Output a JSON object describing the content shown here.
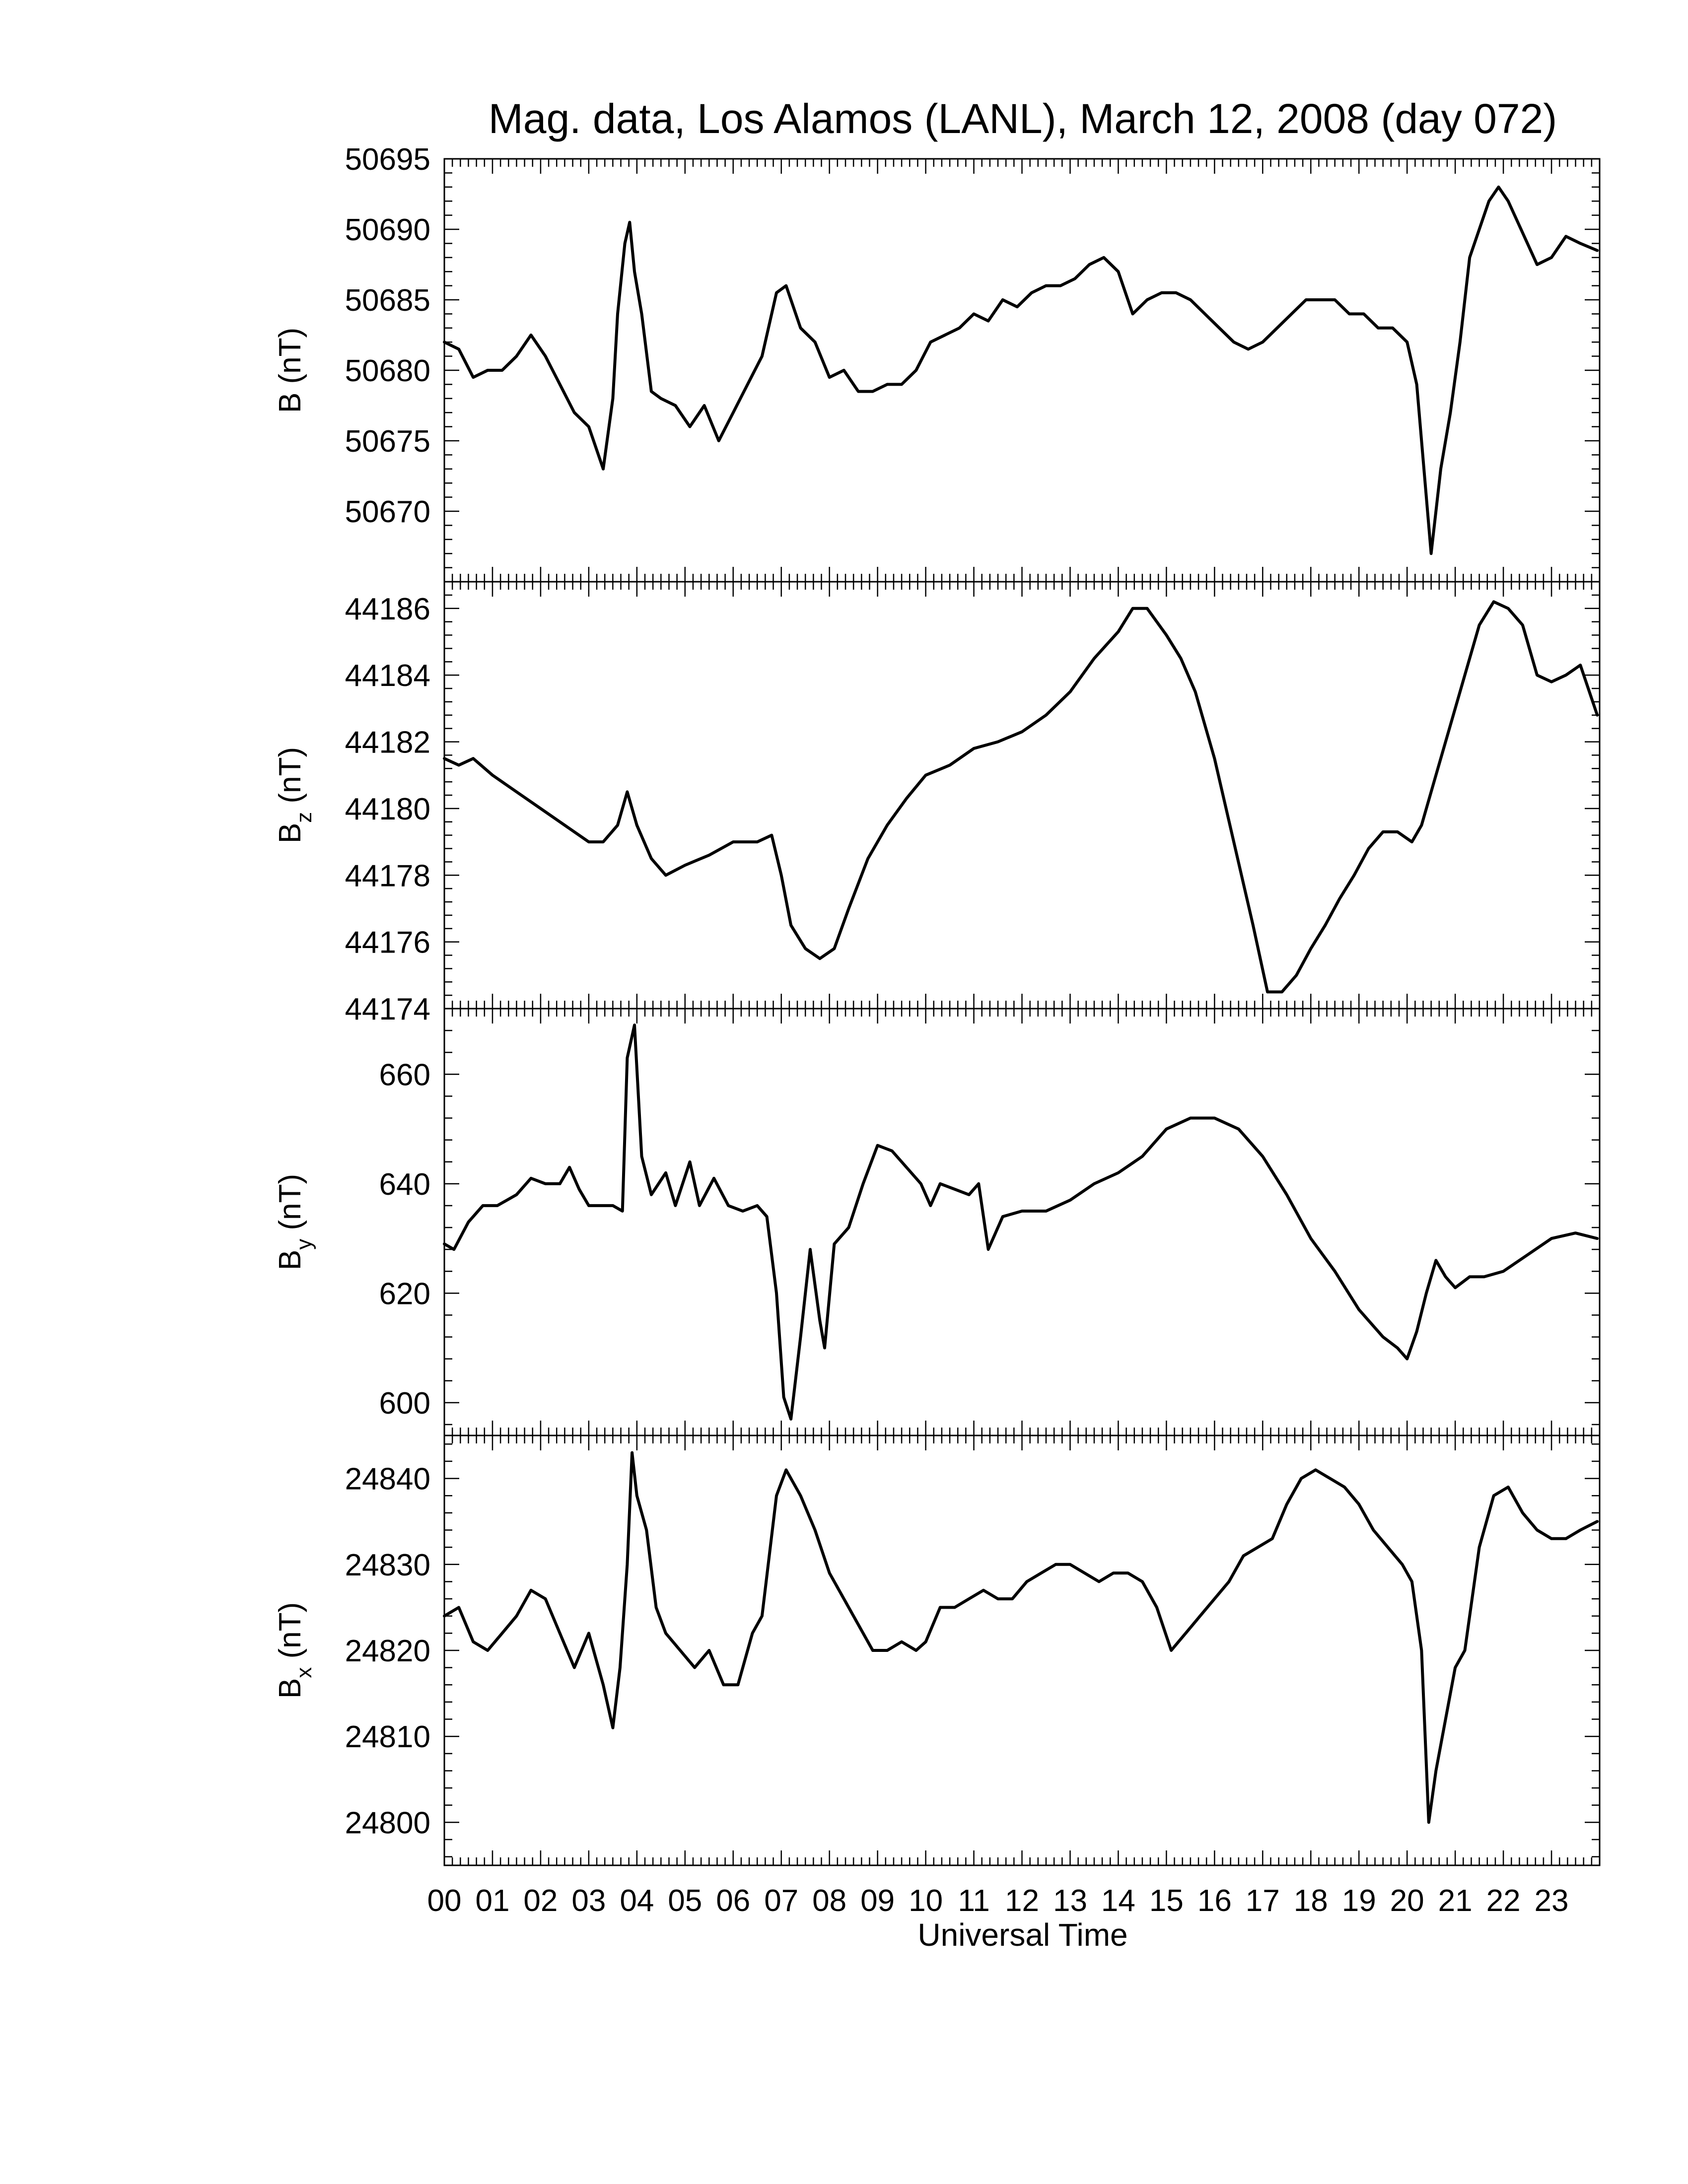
{
  "title": "Mag. data, Los Alamos (LANL), March 12, 2008 (day 072)",
  "xlabel": "Universal Time",
  "line_color": "#000000",
  "chart_data": [
    {
      "type": "line",
      "ylabel_main": "B",
      "ylabel_sub": "",
      "ylabel_unit": "(nT)",
      "xlim": [
        0,
        24
      ],
      "ylim": [
        50665,
        50695
      ],
      "yticks": [
        50670,
        50675,
        50680,
        50685,
        50690,
        50695
      ],
      "series": [
        {
          "x": [
            0,
            0.3,
            0.6,
            0.9,
            1.2,
            1.5,
            1.8,
            2.1,
            2.4,
            2.7,
            3.0,
            3.3,
            3.5,
            3.6,
            3.75,
            3.85,
            3.95,
            4.1,
            4.3,
            4.5,
            4.8,
            5.1,
            5.4,
            5.7,
            6.0,
            6.3,
            6.6,
            6.9,
            7.1,
            7.4,
            7.7,
            8.0,
            8.3,
            8.6,
            8.9,
            9.2,
            9.5,
            9.8,
            10.1,
            10.4,
            10.7,
            11.0,
            11.3,
            11.6,
            11.9,
            12.2,
            12.5,
            12.8,
            13.1,
            13.4,
            13.7,
            14.0,
            14.3,
            14.6,
            14.9,
            15.2,
            15.5,
            15.8,
            16.1,
            16.4,
            16.7,
            17.0,
            17.3,
            17.6,
            17.9,
            18.2,
            18.5,
            18.8,
            19.1,
            19.4,
            19.7,
            20.0,
            20.2,
            20.35,
            20.5,
            20.7,
            20.9,
            21.1,
            21.3,
            21.5,
            21.7,
            21.9,
            22.1,
            22.3,
            22.5,
            22.7,
            23.0,
            23.3,
            23.6,
            23.95
          ],
          "y": [
            50682,
            50681.5,
            50679.5,
            50680,
            50680,
            50681,
            50682.5,
            50681,
            50679,
            50677,
            50676,
            50673,
            50678,
            50684,
            50689,
            50690.5,
            50687,
            50684,
            50678.5,
            50678,
            50677.5,
            50676,
            50677.5,
            50675,
            50677,
            50679,
            50681,
            50685.5,
            50686,
            50683,
            50682,
            50679.5,
            50680,
            50678.5,
            50678.5,
            50679,
            50679,
            50680,
            50682,
            50682.5,
            50683,
            50684,
            50683.5,
            50685,
            50684.5,
            50685.5,
            50686,
            50686,
            50686.5,
            50687.5,
            50688,
            50687,
            50684,
            50685,
            50685.5,
            50685.5,
            50685,
            50684,
            50683,
            50682,
            50681.5,
            50682,
            50683,
            50684,
            50685,
            50685,
            50685,
            50684,
            50684,
            50683,
            50683,
            50682,
            50679,
            50673,
            50667,
            50673,
            50677,
            50682,
            50688,
            50690,
            50692,
            50693,
            50692,
            50690.5,
            50689,
            50687.5,
            50688,
            50689.5,
            50689,
            50688.5
          ]
        }
      ]
    },
    {
      "type": "line",
      "ylabel_main": "B",
      "ylabel_sub": "z",
      "ylabel_unit": "(nT)",
      "xlim": [
        0,
        24
      ],
      "ylim": [
        44174,
        44186.8
      ],
      "yticks": [
        44174,
        44176,
        44178,
        44180,
        44182,
        44184,
        44186
      ],
      "series": [
        {
          "x": [
            0,
            0.3,
            0.6,
            1.0,
            1.5,
            2.0,
            2.5,
            3.0,
            3.3,
            3.6,
            3.8,
            4.0,
            4.3,
            4.6,
            5.0,
            5.5,
            6.0,
            6.5,
            6.8,
            7.0,
            7.2,
            7.5,
            7.8,
            8.1,
            8.4,
            8.8,
            9.2,
            9.6,
            10.0,
            10.5,
            11.0,
            11.5,
            12.0,
            12.5,
            13.0,
            13.5,
            14.0,
            14.3,
            14.6,
            15.0,
            15.3,
            15.6,
            16.0,
            16.4,
            16.8,
            17.1,
            17.4,
            17.7,
            18.0,
            18.3,
            18.6,
            18.9,
            19.2,
            19.5,
            19.8,
            20.1,
            20.3,
            20.6,
            20.9,
            21.2,
            21.5,
            21.8,
            22.1,
            22.4,
            22.7,
            23.0,
            23.3,
            23.6,
            23.95
          ],
          "y": [
            44181.5,
            44181.3,
            44181.5,
            44181,
            44180.5,
            44180,
            44179.5,
            44179,
            44179,
            44179.5,
            44180.5,
            44179.5,
            44178.5,
            44178,
            44178.3,
            44178.6,
            44179,
            44179,
            44179.2,
            44178,
            44176.5,
            44175.8,
            44175.5,
            44175.8,
            44177,
            44178.5,
            44179.5,
            44180.3,
            44181,
            44181.3,
            44181.8,
            44182,
            44182.3,
            44182.8,
            44183.5,
            44184.5,
            44185.3,
            44186,
            44186,
            44185.2,
            44184.5,
            44183.5,
            44181.5,
            44179,
            44176.5,
            44174.5,
            44174.5,
            44175,
            44175.8,
            44176.5,
            44177.3,
            44178,
            44178.8,
            44179.3,
            44179.3,
            44179,
            44179.5,
            44181,
            44182.5,
            44184,
            44185.5,
            44186.2,
            44186,
            44185.5,
            44184,
            44183.8,
            44184,
            44184.3,
            44182.8
          ]
        }
      ]
    },
    {
      "type": "line",
      "ylabel_main": "B",
      "ylabel_sub": "y",
      "ylabel_unit": "(nT)",
      "xlim": [
        0,
        24
      ],
      "ylim": [
        594,
        672
      ],
      "yticks": [
        600,
        620,
        640,
        660
      ],
      "series": [
        {
          "x": [
            0,
            0.2,
            0.5,
            0.8,
            1.1,
            1.5,
            1.8,
            2.1,
            2.4,
            2.6,
            2.8,
            3.0,
            3.3,
            3.5,
            3.7,
            3.8,
            3.95,
            4.1,
            4.3,
            4.6,
            4.8,
            5.1,
            5.3,
            5.6,
            5.9,
            6.2,
            6.5,
            6.7,
            6.9,
            7.05,
            7.2,
            7.4,
            7.6,
            7.8,
            7.9,
            8.1,
            8.4,
            8.7,
            9.0,
            9.3,
            9.6,
            9.9,
            10.1,
            10.3,
            10.6,
            10.9,
            11.1,
            11.3,
            11.6,
            12.0,
            12.5,
            13.0,
            13.5,
            14.0,
            14.5,
            15.0,
            15.5,
            16.0,
            16.5,
            17.0,
            17.5,
            18.0,
            18.5,
            19.0,
            19.5,
            19.8,
            20.0,
            20.2,
            20.4,
            20.6,
            20.8,
            21.0,
            21.3,
            21.6,
            22.0,
            22.5,
            23.0,
            23.5,
            23.95
          ],
          "y": [
            629,
            628,
            633,
            636,
            636,
            638,
            641,
            640,
            640,
            643,
            639,
            636,
            636,
            636,
            635,
            663,
            669,
            645,
            638,
            642,
            636,
            644,
            636,
            641,
            636,
            635,
            636,
            634,
            620,
            601,
            597,
            612,
            628,
            615,
            610,
            629,
            632,
            640,
            647,
            646,
            643,
            640,
            636,
            640,
            639,
            638,
            640,
            628,
            634,
            635,
            635,
            637,
            640,
            642,
            645,
            650,
            652,
            652,
            650,
            645,
            638,
            630,
            624,
            617,
            612,
            610,
            608,
            613,
            620,
            626,
            623,
            621,
            623,
            623,
            624,
            627,
            630,
            631,
            630
          ]
        }
      ]
    },
    {
      "type": "line",
      "ylabel_main": "B",
      "ylabel_sub": "x",
      "ylabel_unit": "(nT)",
      "xlim": [
        0,
        24
      ],
      "ylim": [
        24795,
        24845
      ],
      "yticks": [
        24800,
        24810,
        24820,
        24830,
        24840
      ],
      "series": [
        {
          "x": [
            0,
            0.3,
            0.6,
            0.9,
            1.2,
            1.5,
            1.8,
            2.1,
            2.4,
            2.7,
            3.0,
            3.3,
            3.5,
            3.65,
            3.8,
            3.9,
            4.0,
            4.2,
            4.4,
            4.6,
            4.9,
            5.2,
            5.5,
            5.8,
            6.1,
            6.4,
            6.6,
            6.9,
            7.1,
            7.4,
            7.7,
            8.0,
            8.3,
            8.6,
            8.9,
            9.2,
            9.5,
            9.8,
            10.0,
            10.3,
            10.6,
            10.9,
            11.2,
            11.5,
            11.8,
            12.1,
            12.4,
            12.7,
            13.0,
            13.3,
            13.6,
            13.9,
            14.2,
            14.5,
            14.8,
            15.1,
            15.4,
            15.7,
            16.0,
            16.3,
            16.6,
            16.9,
            17.2,
            17.5,
            17.8,
            18.1,
            18.4,
            18.7,
            19.0,
            19.3,
            19.6,
            19.9,
            20.1,
            20.3,
            20.45,
            20.6,
            20.8,
            21.0,
            21.2,
            21.5,
            21.8,
            22.1,
            22.4,
            22.7,
            23.0,
            23.3,
            23.6,
            23.95
          ],
          "y": [
            24824,
            24825,
            24821,
            24820,
            24822,
            24824,
            24827,
            24826,
            24822,
            24818,
            24822,
            24816,
            24811,
            24818,
            24830,
            24843,
            24838,
            24834,
            24825,
            24822,
            24820,
            24818,
            24820,
            24816,
            24816,
            24822,
            24824,
            24838,
            24841,
            24838,
            24834,
            24829,
            24826,
            24823,
            24820,
            24820,
            24821,
            24820,
            24821,
            24825,
            24825,
            24826,
            24827,
            24826,
            24826,
            24828,
            24829,
            24830,
            24830,
            24829,
            24828,
            24829,
            24829,
            24828,
            24825,
            24820,
            24822,
            24824,
            24826,
            24828,
            24831,
            24832,
            24833,
            24837,
            24840,
            24841,
            24840,
            24839,
            24837,
            24834,
            24832,
            24830,
            24828,
            24820,
            24800,
            24806,
            24812,
            24818,
            24820,
            24832,
            24838,
            24839,
            24836,
            24834,
            24833,
            24833,
            24834,
            24835
          ]
        }
      ]
    }
  ],
  "xticks": {
    "values": [
      0,
      1,
      2,
      3,
      4,
      5,
      6,
      7,
      8,
      9,
      10,
      11,
      12,
      13,
      14,
      15,
      16,
      17,
      18,
      19,
      20,
      21,
      22,
      23
    ],
    "labels": [
      "00",
      "01",
      "02",
      "03",
      "04",
      "05",
      "06",
      "07",
      "08",
      "09",
      "10",
      "11",
      "12",
      "13",
      "14",
      "15",
      "16",
      "17",
      "18",
      "19",
      "20",
      "21",
      "22",
      "23"
    ]
  }
}
